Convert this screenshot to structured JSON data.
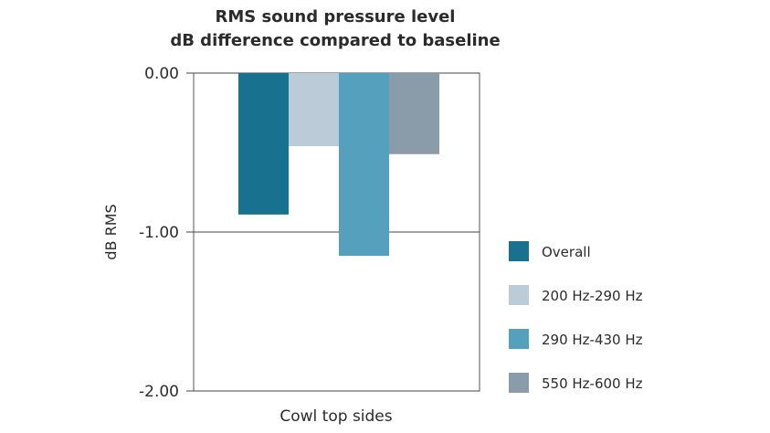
{
  "chart_data": {
    "type": "bar",
    "title_lines": [
      "RMS sound pressure level",
      "dB difference compared to baseline"
    ],
    "ylabel": "dB RMS",
    "xlabel": "",
    "categories": [
      "Cowl top sides"
    ],
    "ylim": [
      -2.0,
      0.0
    ],
    "yticks": [
      "0.00",
      "-1.00",
      "-2.00"
    ],
    "ytick_values": [
      0.0,
      -1.0,
      -2.0
    ],
    "grid": true,
    "legend_position": "right",
    "series": [
      {
        "name": "Overall",
        "values": [
          -0.89
        ],
        "color": "#17718f"
      },
      {
        "name": "200 Hz-290 Hz",
        "values": [
          -0.46
        ],
        "color": "#bccbd8"
      },
      {
        "name": "290 Hz-430 Hz",
        "values": [
          -1.15
        ],
        "color": "#55a1bd"
      },
      {
        "name": "550 Hz-600 Hz",
        "values": [
          -0.51
        ],
        "color": "#8a9caa"
      }
    ]
  }
}
